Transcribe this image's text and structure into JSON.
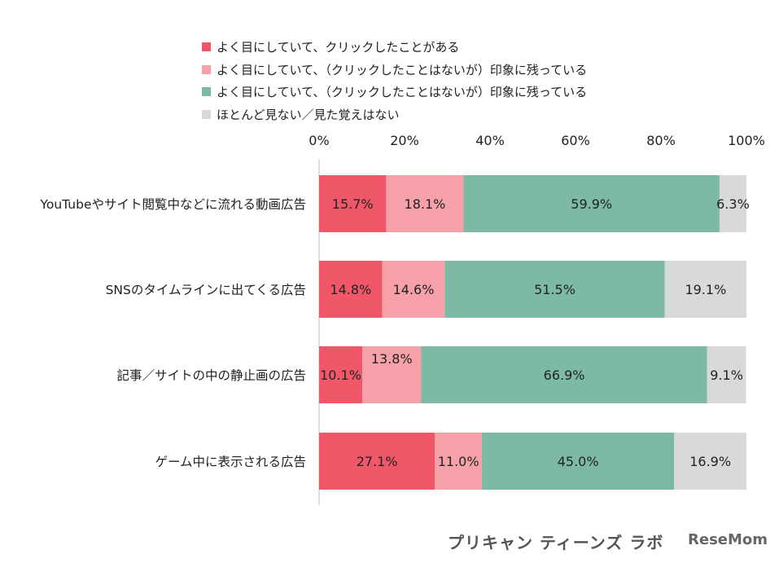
{
  "chart_data": {
    "type": "bar",
    "orientation": "horizontal-stacked-100",
    "categories": [
      "YouTubeやサイト閲覧中などに流れる動画広告",
      "SNSのタイムラインに出てくる広告",
      "記事／サイトの中の静止画の広告",
      "ゲーム中に表示される広告"
    ],
    "series": [
      {
        "name": "よく目にしていて、クリックしたことがある",
        "color": "#f0586a",
        "values": [
          15.7,
          14.8,
          10.1,
          27.1
        ]
      },
      {
        "name": "よく目にしていて、（クリックしたことはないが）印象に残っている",
        "color": "#f6a1a9",
        "values": [
          18.1,
          14.6,
          13.8,
          11.0
        ]
      },
      {
        "name": "よく目にしていて、（クリックしたことはないが）印象に残っている",
        "color": "#7dbaa5",
        "values": [
          59.9,
          51.5,
          66.9,
          45.0
        ]
      },
      {
        "name": "ほとんど見ない／見た覚えはない",
        "color": "#d9d9d9",
        "values": [
          6.3,
          19.1,
          9.1,
          16.9
        ]
      }
    ],
    "xticks": [
      "0%",
      "20%",
      "40%",
      "60%",
      "80%",
      "100%"
    ],
    "xlim": [
      0,
      100
    ],
    "legend_position": "top",
    "grid": false
  },
  "logo": {
    "text": "プリキャン ティーンズ ラボ",
    "watermark": "ReseMom"
  }
}
